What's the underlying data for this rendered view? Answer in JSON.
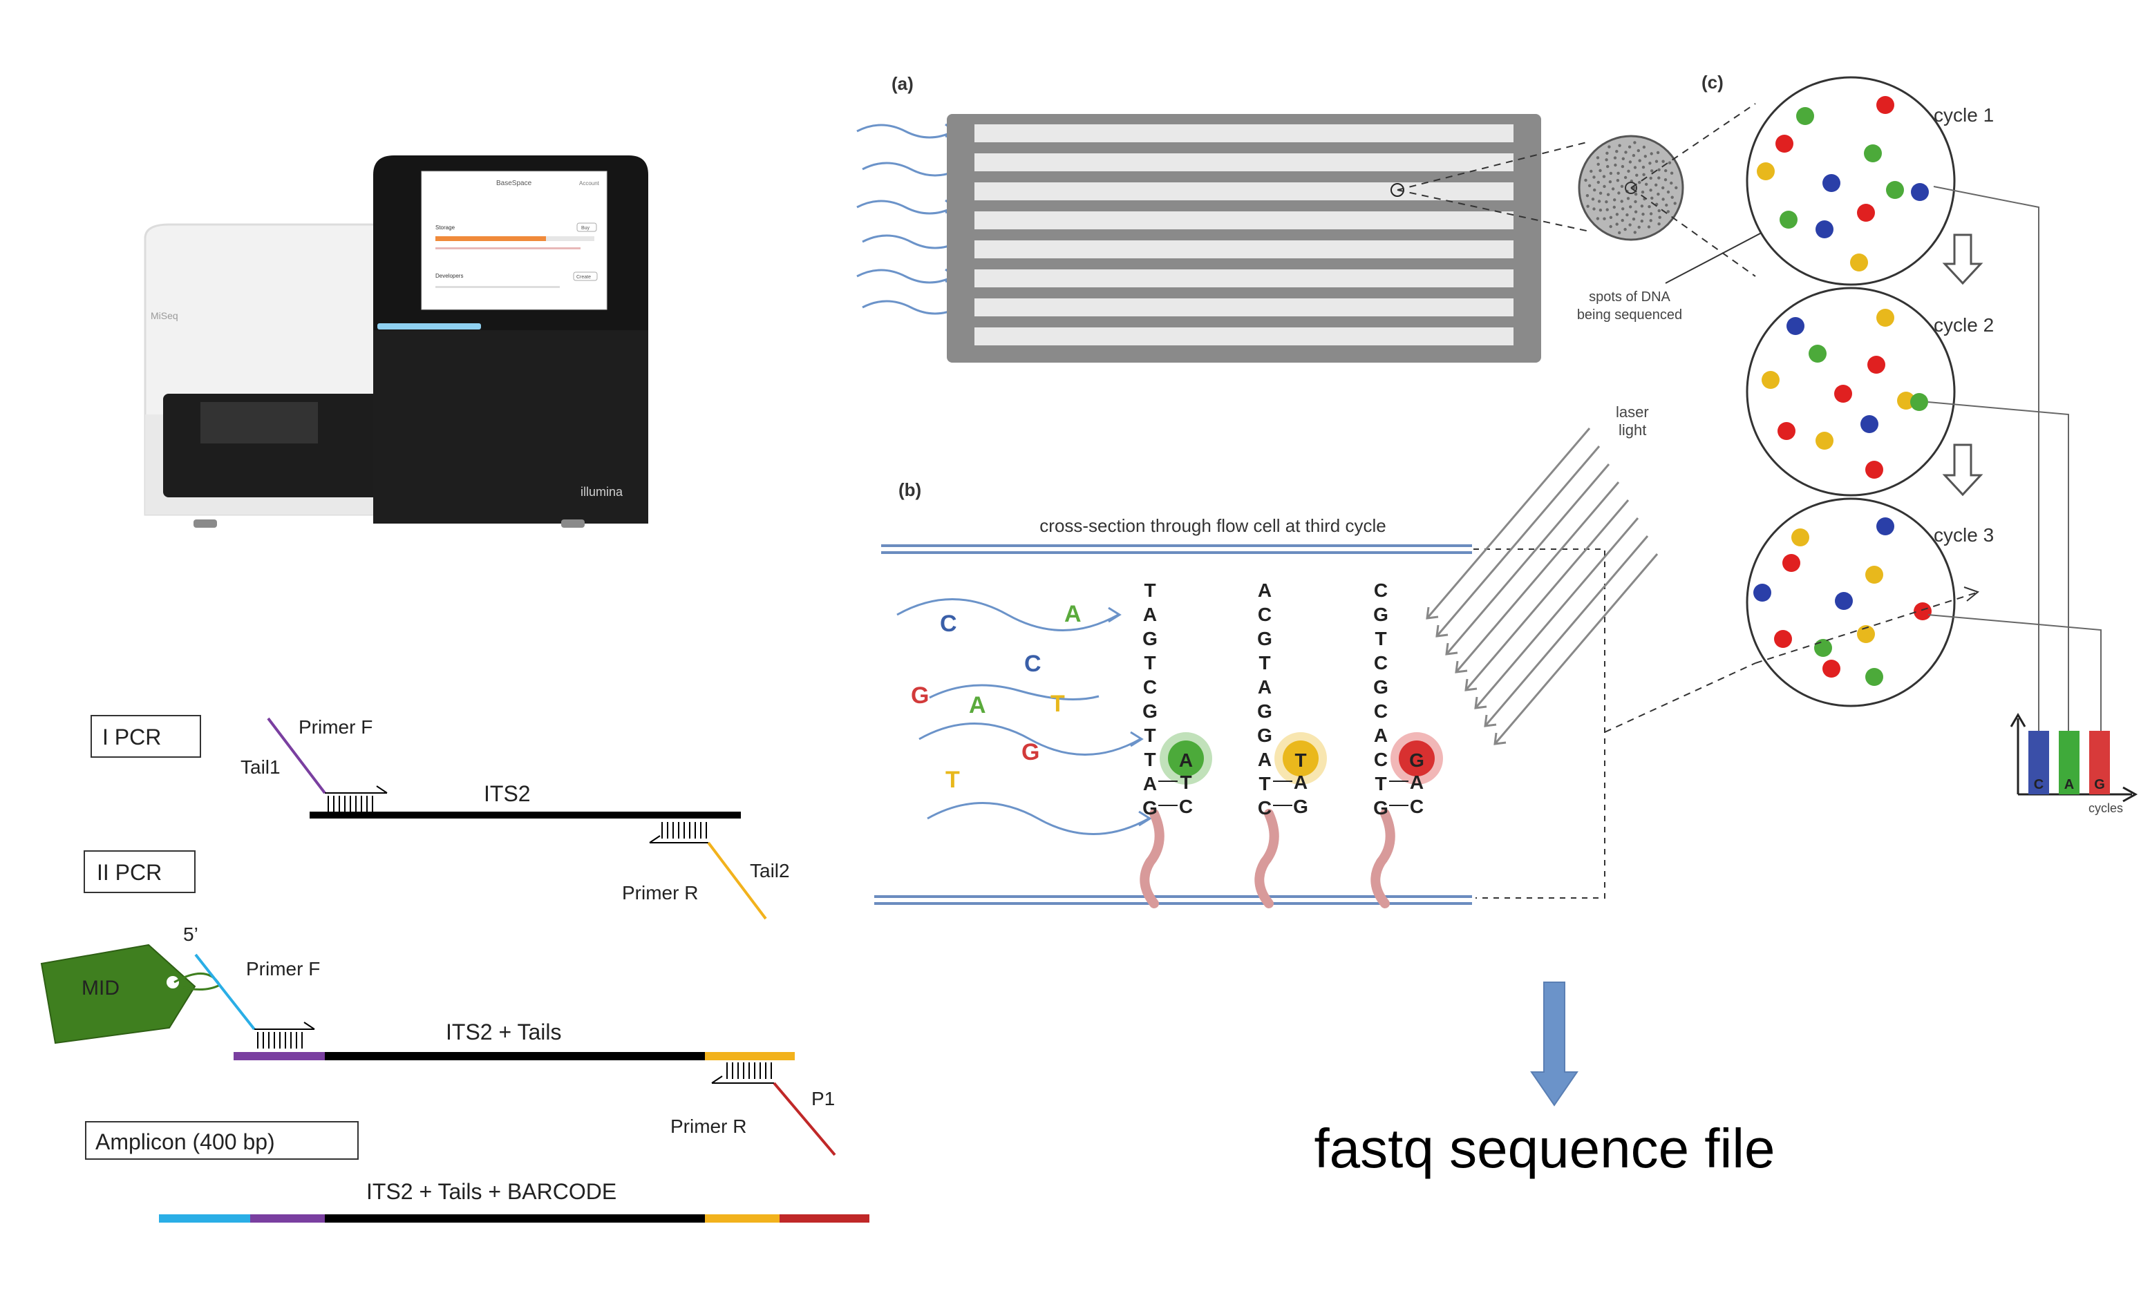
{
  "machine": {
    "brand_label": "MiSeq",
    "logo": "illumina",
    "screen": {
      "title": "BaseSpace",
      "corner": "Account",
      "storage_label": "Storage",
      "storage_button": "Buy",
      "developers_label": "Developers",
      "developers_button": "Create"
    }
  },
  "pcr": {
    "step1_label": "I PCR",
    "step2_label": "II PCR",
    "step3_label": "Amplicon (400 bp)",
    "primer_f": "Primer F",
    "primer_r": "Primer R",
    "tail1": "Tail1",
    "tail2": "Tail2",
    "its2": "ITS2",
    "its2_tails": "ITS2 + Tails",
    "its2_tails_barcode": "ITS2 + Tails + BARCODE",
    "five_prime": "5’",
    "mid": "MID",
    "p1": "P1",
    "colors": {
      "tail1": "#7a3fa0",
      "tail2": "#f2b21c",
      "primer_f2": "#2aaee6",
      "p1": "#c02828",
      "mid": "#3f7f1f"
    }
  },
  "panel_a": {
    "label": "(a)"
  },
  "panel_b": {
    "label": "(b)",
    "caption": "cross-section through flow cell at third cycle",
    "laser": [
      "laser",
      "light"
    ],
    "free_bases": [
      {
        "base": "C",
        "color": "#3a5fa8"
      },
      {
        "base": "A",
        "color": "#5aaa3c"
      },
      {
        "base": "C",
        "color": "#3a5fa8"
      },
      {
        "base": "G",
        "color": "#d23a3a"
      },
      {
        "base": "A",
        "color": "#5aaa3c"
      },
      {
        "base": "T",
        "color": "#e8b81c"
      },
      {
        "base": "G",
        "color": "#d23a3a"
      },
      {
        "base": "T",
        "color": "#e8b81c"
      }
    ],
    "strands": [
      {
        "top": [
          "T",
          "A",
          "G",
          "T",
          "C",
          "G",
          "T",
          "T",
          "A",
          "G"
        ],
        "pair": [
          "T",
          "C"
        ],
        "incorporated": "A",
        "color": "#4caa3a"
      },
      {
        "top": [
          "A",
          "C",
          "G",
          "T",
          "A",
          "G",
          "G",
          "A",
          "T",
          "C"
        ],
        "pair": [
          "A",
          "G"
        ],
        "incorporated": "T",
        "color": "#eab81c"
      },
      {
        "top": [
          "C",
          "G",
          "T",
          "C",
          "G",
          "C",
          "A",
          "C",
          "T",
          "G"
        ],
        "pair": [
          "A",
          "C"
        ],
        "incorporated": "G",
        "color": "#d83030"
      }
    ]
  },
  "panel_c": {
    "label": "(c)",
    "spots_caption": [
      "spots of DNA",
      "being sequenced"
    ],
    "cycles": [
      "cycle 1",
      "cycle 2",
      "cycle 3"
    ],
    "histogram": {
      "bars": [
        {
          "base": "C",
          "color": "#3a4fa8"
        },
        {
          "base": "A",
          "color": "#3faa3a"
        },
        {
          "base": "G",
          "color": "#d83a3a"
        }
      ],
      "axis_label": "cycles"
    }
  },
  "output": {
    "label": "fastq sequence file",
    "arrow_color": "#6b93c9"
  },
  "colors": {
    "red": "#e02020",
    "green": "#4caa3a",
    "blue": "#2a3fa8",
    "yellow": "#e8b81c"
  }
}
